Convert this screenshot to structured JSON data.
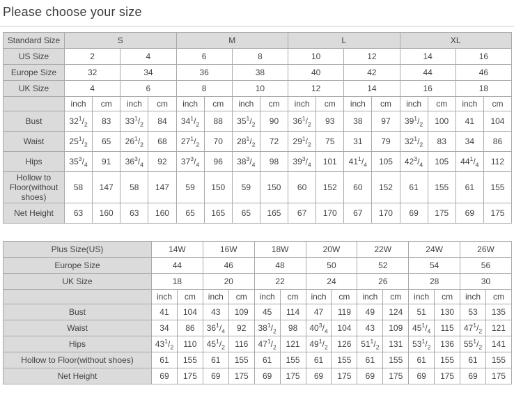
{
  "page": {
    "title": "Please choose your size"
  },
  "colors": {
    "header_bg": "#dbdbdb",
    "border": "#a9a9a9",
    "text": "#434343",
    "cell_bg": "#ffffff"
  },
  "unit_labels": [
    "inch",
    "cm"
  ],
  "standard_table": {
    "header_rows": [
      {
        "label": "Standard Size",
        "values": [
          "S",
          "M",
          "L",
          "XL"
        ],
        "shaded": true
      },
      {
        "label": "US Size",
        "values": [
          "2",
          "4",
          "6",
          "8",
          "10",
          "12",
          "14",
          "16"
        ]
      },
      {
        "label": "Europe Size",
        "values": [
          "32",
          "34",
          "36",
          "38",
          "40",
          "42",
          "44",
          "46"
        ]
      },
      {
        "label": "UK Size",
        "values": [
          "4",
          "6",
          "8",
          "10",
          "12",
          "14",
          "16",
          "18"
        ]
      }
    ],
    "measure_rows": [
      {
        "label": "Bust",
        "values": [
          "32 1/2",
          "83",
          "33 1/2",
          "84",
          "34 1/2",
          "88",
          "35 1/2",
          "90",
          "36 1/2",
          "93",
          "38",
          "97",
          "39 1/2",
          "100",
          "41",
          "104"
        ]
      },
      {
        "label": "Waist",
        "values": [
          "25 1/2",
          "65",
          "26 1/2",
          "68",
          "27 1/2",
          "70",
          "28 1/2",
          "72",
          "29 1/2",
          "75",
          "31",
          "79",
          "32 1/2",
          "83",
          "34",
          "86"
        ]
      },
      {
        "label": "Hips",
        "values": [
          "35 3/4",
          "91",
          "36 3/4",
          "92",
          "37 3/4",
          "96",
          "38 3/4",
          "98",
          "39 3/4",
          "101",
          "41 1/4",
          "105",
          "42 3/4",
          "105",
          "44 1/4",
          "112"
        ]
      },
      {
        "label": "Hollow to Floor(without shoes)",
        "values": [
          "58",
          "147",
          "58",
          "147",
          "59",
          "150",
          "59",
          "150",
          "60",
          "152",
          "60",
          "152",
          "61",
          "155",
          "61",
          "155"
        ]
      },
      {
        "label": "Net Height",
        "values": [
          "63",
          "160",
          "63",
          "160",
          "65",
          "165",
          "65",
          "165",
          "67",
          "170",
          "67",
          "170",
          "69",
          "175",
          "69",
          "175"
        ]
      }
    ]
  },
  "plus_table": {
    "header_rows": [
      {
        "label": "Plus Size(US)",
        "values": [
          "14W",
          "16W",
          "18W",
          "20W",
          "22W",
          "24W",
          "26W"
        ]
      },
      {
        "label": "Europe Size",
        "values": [
          "44",
          "46",
          "48",
          "50",
          "52",
          "54",
          "56"
        ]
      },
      {
        "label": "UK Size",
        "values": [
          "18",
          "20",
          "22",
          "24",
          "26",
          "28",
          "30"
        ]
      }
    ],
    "measure_rows": [
      {
        "label": "Bust",
        "values": [
          "41",
          "104",
          "43",
          "109",
          "45",
          "114",
          "47",
          "119",
          "49",
          "124",
          "51",
          "130",
          "53",
          "135"
        ]
      },
      {
        "label": "Waist",
        "values": [
          "34",
          "86",
          "36 1/4",
          "92",
          "38 1/2",
          "98",
          "40 3/4",
          "104",
          "43",
          "109",
          "45 1/4",
          "115",
          "47 1/2",
          "121"
        ]
      },
      {
        "label": "Hips",
        "values": [
          "43 1/2",
          "110",
          "45 1/2",
          "116",
          "47 1/2",
          "121",
          "49 1/2",
          "126",
          "51 1/2",
          "131",
          "53 1/2",
          "136",
          "55 1/2",
          "141"
        ]
      },
      {
        "label": "Hollow to Floor(without shoes)",
        "values": [
          "61",
          "155",
          "61",
          "155",
          "61",
          "155",
          "61",
          "155",
          "61",
          "155",
          "61",
          "155",
          "61",
          "155"
        ]
      },
      {
        "label": "Net Height",
        "values": [
          "69",
          "175",
          "69",
          "175",
          "69",
          "175",
          "69",
          "175",
          "69",
          "175",
          "69",
          "175",
          "69",
          "175"
        ]
      }
    ]
  }
}
